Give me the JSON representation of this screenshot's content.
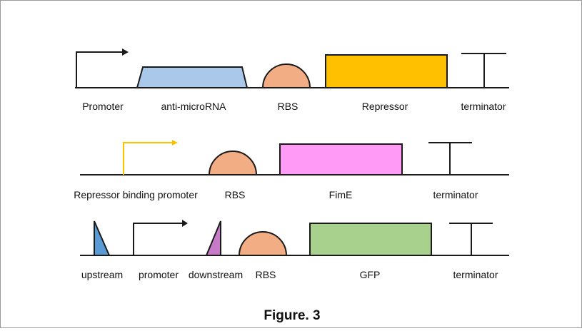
{
  "caption": "Figure. 3",
  "colors": {
    "outline": "#1a1a1a",
    "anti_microrna": "#a9c8ea",
    "rbs": "#f2ad84",
    "repressor": "#ffc000",
    "fime": "#ff9bf7",
    "gfp": "#a9d18e",
    "yellow_promoter": "#ffc000",
    "upstream": "#5b9bd5",
    "downstream": "#c67ac8"
  },
  "row1": {
    "promoter": "Promoter",
    "anti_microrna": "anti-microRNA",
    "rbs": "RBS",
    "repressor": "Repressor",
    "terminator": "terminator"
  },
  "row2": {
    "repressor_binding_promoter": "Repressor binding promoter",
    "rbs": "RBS",
    "fime": "FimE",
    "terminator": "terminator"
  },
  "row3": {
    "upstream": "upstream",
    "promoter": "promoter",
    "downstream": "downstream",
    "rbs": "RBS",
    "gfp": "GFP",
    "terminator": "terminator"
  }
}
